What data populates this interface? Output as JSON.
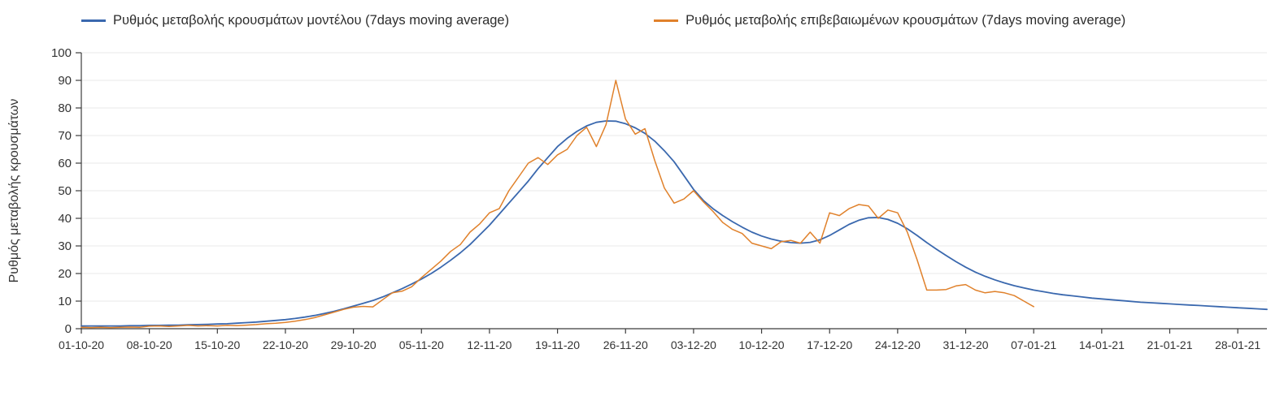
{
  "page": {
    "background": "#ffffff"
  },
  "chart_data": {
    "type": "line",
    "title": "",
    "xlabel": "",
    "ylabel": "Ρυθμός μεταβολής κρουσμάτων",
    "ylim": [
      0,
      100
    ],
    "yticks": [
      0,
      10,
      20,
      30,
      40,
      50,
      60,
      70,
      80,
      90,
      100
    ],
    "grid": true,
    "legend_position": "top",
    "x_total_points": 123,
    "x_tick_positions": [
      0,
      7,
      14,
      21,
      28,
      35,
      42,
      49,
      56,
      63,
      70,
      77,
      84,
      91,
      98,
      105,
      112,
      119
    ],
    "x_tick_labels": [
      "01-10-20",
      "08-10-20",
      "15-10-20",
      "22-10-20",
      "29-10-20",
      "05-11-20",
      "12-11-20",
      "19-11-20",
      "26-11-20",
      "03-12-20",
      "10-12-20",
      "17-12-20",
      "24-12-20",
      "31-12-20",
      "07-01-21",
      "14-01-21",
      "21-01-21",
      "28-01-21"
    ],
    "series": [
      {
        "name": "Ρυθμός μεταβολής κρουσμάτων μοντέλου (7days moving average)",
        "color": "#3a68ae",
        "values": [
          1.0,
          1.0,
          1.0,
          1.0,
          1.0,
          1.1,
          1.1,
          1.2,
          1.2,
          1.3,
          1.3,
          1.4,
          1.5,
          1.6,
          1.7,
          1.8,
          2.0,
          2.2,
          2.4,
          2.7,
          3.0,
          3.3,
          3.7,
          4.2,
          4.8,
          5.5,
          6.3,
          7.2,
          8.2,
          9.2,
          10.2,
          11.5,
          13.0,
          14.5,
          16.2,
          18.0,
          20.0,
          22.3,
          24.8,
          27.5,
          30.5,
          34.0,
          37.5,
          41.5,
          45.5,
          49.5,
          53.5,
          58.0,
          62.0,
          66.0,
          69.0,
          71.5,
          73.5,
          74.8,
          75.3,
          75.2,
          74.3,
          72.8,
          70.8,
          68.0,
          64.5,
          60.5,
          55.5,
          50.5,
          46.5,
          43.5,
          41.0,
          38.8,
          36.8,
          35.0,
          33.6,
          32.5,
          31.7,
          31.2,
          31.0,
          31.3,
          32.2,
          33.8,
          35.8,
          37.8,
          39.3,
          40.2,
          40.3,
          39.6,
          38.2,
          36.2,
          33.8,
          31.2,
          28.8,
          26.5,
          24.3,
          22.3,
          20.5,
          19.0,
          17.7,
          16.6,
          15.6,
          14.8,
          14.0,
          13.4,
          12.8,
          12.3,
          11.9,
          11.5,
          11.1,
          10.8,
          10.5,
          10.2,
          9.9,
          9.6,
          9.4,
          9.2,
          9.0,
          8.8,
          8.6,
          8.4,
          8.2,
          8.0,
          7.8,
          7.6,
          7.4,
          7.2,
          7.0
        ]
      },
      {
        "name": "Ρυθμός μεταβολής επιβεβαιωμένων κρουσμάτων (7days moving average)",
        "color": "#e0812b",
        "values": [
          0.5,
          0.4,
          0.5,
          0.4,
          0.5,
          0.6,
          0.5,
          0.9,
          1.0,
          0.8,
          1.0,
          1.2,
          1.0,
          1.1,
          1.0,
          1.2,
          1.1,
          1.3,
          1.5,
          1.8,
          2.0,
          2.3,
          2.7,
          3.3,
          4.0,
          5.0,
          6.0,
          7.0,
          7.8,
          8.1,
          7.9,
          10.5,
          13.0,
          13.6,
          15.2,
          18.5,
          21.5,
          24.5,
          28.0,
          30.5,
          35.0,
          38.0,
          42.0,
          43.5,
          50.0,
          55.0,
          60.0,
          62.0,
          59.5,
          63.0,
          65.0,
          70.0,
          73.0,
          66.0,
          74.0,
          90.0,
          76.0,
          70.5,
          72.5,
          61.0,
          51.0,
          45.5,
          47.0,
          50.0,
          46.0,
          42.5,
          38.5,
          36.0,
          34.5,
          31.0,
          30.0,
          29.0,
          31.5,
          32.0,
          31.0,
          35.0,
          31.0,
          42.0,
          41.0,
          43.5,
          45.0,
          44.5,
          40.0,
          43.0,
          42.0,
          35.0,
          25.0,
          14.0,
          14.0,
          14.2,
          15.5,
          16.0,
          14.0,
          13.0,
          13.5,
          13.0,
          12.0,
          10.0,
          8.0
        ]
      }
    ]
  }
}
